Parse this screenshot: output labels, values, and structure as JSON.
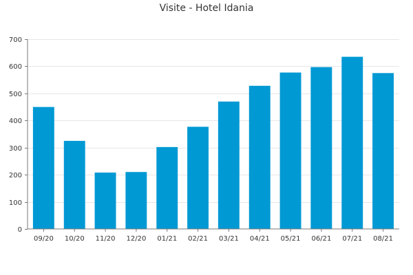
{
  "chart_data": {
    "type": "bar",
    "title": "Visite - Hotel Idania",
    "xlabel": "",
    "ylabel": "",
    "categories": [
      "09/20",
      "10/20",
      "11/20",
      "12/20",
      "01/21",
      "02/21",
      "03/21",
      "04/21",
      "05/21",
      "06/21",
      "07/21",
      "08/21"
    ],
    "values": [
      450,
      325,
      208,
      210,
      302,
      377,
      470,
      528,
      577,
      597,
      635,
      575
    ],
    "ylim": [
      0,
      700
    ],
    "yticks": [
      0,
      100,
      200,
      300,
      400,
      500,
      600,
      700
    ],
    "grid": true,
    "legend": "none",
    "colors": {
      "bar": "#0099d4"
    }
  }
}
